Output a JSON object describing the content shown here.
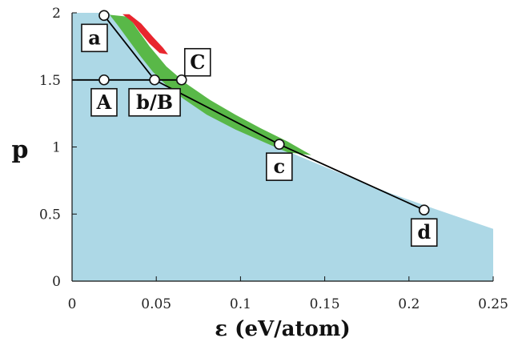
{
  "chart_data": {
    "type": "area",
    "xlabel": "ε  (eV/atom)",
    "ylabel": "p",
    "xlim": [
      0,
      0.25
    ],
    "ylim": [
      0,
      2
    ],
    "xticks": [
      0,
      0.05,
      0.1,
      0.15,
      0.2,
      0.25
    ],
    "xtick_labels": [
      "0",
      "0.05",
      "0.1",
      "0.15",
      "0.2",
      "0.25"
    ],
    "yticks": [
      0,
      0.5,
      1,
      1.5,
      2
    ],
    "ytick_labels": [
      "0",
      "0.5",
      "1",
      "1.5",
      "2"
    ],
    "grid": false,
    "colors": {
      "blue_region": "#add8e6",
      "green_region": "#59b848",
      "red_region": "#e8262e",
      "line": "#000000",
      "marker_fill": "#ffffff"
    },
    "regions": [
      {
        "color_key": "blue_region",
        "polygon": [
          [
            0,
            0
          ],
          [
            0,
            2
          ],
          [
            0.022,
            2
          ],
          [
            0.027,
            1.92
          ],
          [
            0.034,
            1.8
          ],
          [
            0.041,
            1.68
          ],
          [
            0.048,
            1.58
          ],
          [
            0.056,
            1.48
          ],
          [
            0.066,
            1.38
          ],
          [
            0.08,
            1.26
          ],
          [
            0.097,
            1.14
          ],
          [
            0.115,
            1.04
          ],
          [
            0.135,
            0.93
          ],
          [
            0.16,
            0.8
          ],
          [
            0.19,
            0.65
          ],
          [
            0.215,
            0.54
          ],
          [
            0.25,
            0.39
          ],
          [
            0.25,
            0
          ]
        ]
      },
      {
        "color_key": "green_region",
        "polygon": [
          [
            0.019,
            1.99
          ],
          [
            0.034,
            1.97
          ],
          [
            0.038,
            1.89
          ],
          [
            0.046,
            1.75
          ],
          [
            0.056,
            1.6
          ],
          [
            0.068,
            1.47
          ],
          [
            0.082,
            1.35
          ],
          [
            0.097,
            1.24
          ],
          [
            0.112,
            1.14
          ],
          [
            0.128,
            1.04
          ],
          [
            0.142,
            0.94
          ],
          [
            0.128,
            0.96
          ],
          [
            0.115,
            1.03
          ],
          [
            0.097,
            1.13
          ],
          [
            0.08,
            1.24
          ],
          [
            0.066,
            1.36
          ],
          [
            0.056,
            1.46
          ],
          [
            0.048,
            1.56
          ],
          [
            0.041,
            1.67
          ],
          [
            0.034,
            1.79
          ],
          [
            0.027,
            1.91
          ],
          [
            0.022,
            1.99
          ]
        ]
      },
      {
        "color_key": "red_region",
        "polygon": [
          [
            0.034,
            1.99
          ],
          [
            0.041,
            1.92
          ],
          [
            0.048,
            1.82
          ],
          [
            0.054,
            1.74
          ],
          [
            0.057,
            1.69
          ],
          [
            0.052,
            1.7
          ],
          [
            0.046,
            1.77
          ],
          [
            0.04,
            1.86
          ],
          [
            0.036,
            1.93
          ],
          [
            0.03,
            1.99
          ]
        ]
      }
    ],
    "lines": [
      {
        "points": [
          [
            0,
            1.5
          ],
          [
            0.065,
            1.5
          ]
        ]
      },
      {
        "points": [
          [
            0.019,
            1.98
          ],
          [
            0.049,
            1.5
          ],
          [
            0.123,
            1.02
          ],
          [
            0.209,
            0.53
          ]
        ]
      }
    ],
    "points": [
      {
        "label": "a",
        "x": 0.019,
        "y": 1.98,
        "label_dx": -12,
        "label_dy": 28
      },
      {
        "label": "A",
        "x": 0.019,
        "y": 1.5,
        "label_dx": 0,
        "label_dy": 28
      },
      {
        "label": "b/B",
        "x": 0.049,
        "y": 1.5,
        "label_dx": 0,
        "label_dy": 28
      },
      {
        "label": "C",
        "x": 0.065,
        "y": 1.5,
        "label_dx": 20,
        "label_dy": -22
      },
      {
        "label": "c",
        "x": 0.123,
        "y": 1.02,
        "label_dx": 0,
        "label_dy": 28
      },
      {
        "label": "d",
        "x": 0.209,
        "y": 0.53,
        "label_dx": 0,
        "label_dy": 28
      }
    ]
  }
}
